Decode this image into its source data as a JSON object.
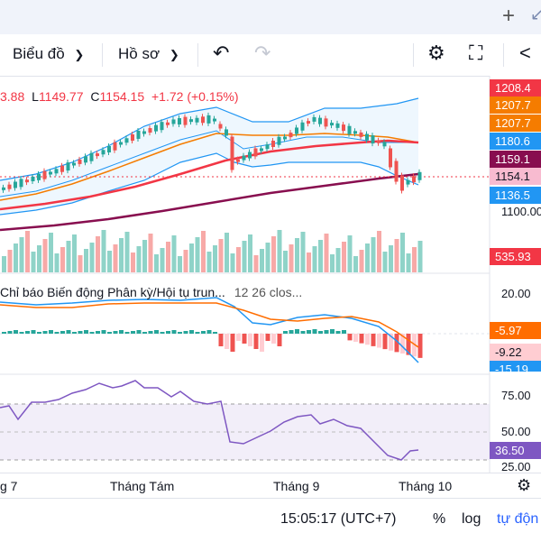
{
  "topbar": {
    "plus_icon": "plus-icon",
    "arrow_icon": "arrow-icon"
  },
  "toolbar": {
    "chart_label": "Biểu đồ",
    "profile_label": "Hồ sơ",
    "undo_icon": "undo-icon",
    "redo_icon": "redo-icon",
    "settings_icon": "gear-icon",
    "fullscreen_icon": "fullscreen-icon",
    "share_icon": "share-icon"
  },
  "ohlc": {
    "high": "3.88",
    "low_label": "L",
    "low": "1149.77",
    "close_label": "C",
    "close": "1154.15",
    "change": "+1.72",
    "change_pct": "(+0.15%)"
  },
  "macd": {
    "title": "Chỉ báo Biến động Phân kỳ/Hội tụ trun...",
    "params": "12 26 clos..."
  },
  "price_tags": [
    {
      "text": "1208.4",
      "bg": "#f23645",
      "color": "#ffffff"
    },
    {
      "text": "1207.7",
      "bg": "#f57c00",
      "color": "#ffffff"
    },
    {
      "text": "1207.7",
      "bg": "#f57c00",
      "color": "#ffffff"
    },
    {
      "text": "1180.6",
      "bg": "#2196f3",
      "color": "#ffffff"
    },
    {
      "text": "1159.1",
      "bg": "#880e4f",
      "color": "#ffffff"
    },
    {
      "text": "1154.1",
      "bg": "#f8bbd0",
      "color": "#131722"
    },
    {
      "text": "1136.5",
      "bg": "#2196f3",
      "color": "#ffffff"
    }
  ],
  "price_axis": [
    "1100.00"
  ],
  "volume_tag": {
    "text": "535.93",
    "bg": "#f23645",
    "color": "#ffffff"
  },
  "macd_axis": [
    "20.00"
  ],
  "macd_tags": [
    {
      "text": "-5.97",
      "bg": "#ff6d00",
      "color": "#ffffff"
    },
    {
      "text": "-9.22",
      "bg": "#ffcdd2",
      "color": "#131722"
    },
    {
      "text": "-15.19",
      "bg": "#2196f3",
      "color": "#ffffff"
    }
  ],
  "rsi_axis": [
    "75.00",
    "50.00",
    "25.00"
  ],
  "rsi_tag": {
    "text": "36.50",
    "bg": "#7e57c2",
    "color": "#ffffff"
  },
  "x_labels": [
    "g 7",
    "Tháng Tám",
    "Tháng 9",
    "Tháng 10"
  ],
  "status": {
    "time": "15:05:17 (UTC+7)",
    "percent": "%",
    "log": "log",
    "auto": "tự độn"
  },
  "colors": {
    "up": "#26a69a",
    "down": "#ef5350",
    "vol_up": "#8fd3c8",
    "vol_down": "#f7a9a7",
    "bb": "#2196f3",
    "ma_fast": "#f57c00",
    "ma_mid": "#f23645",
    "ma_slow": "#880e4f",
    "rsi": "#7e57c2"
  }
}
